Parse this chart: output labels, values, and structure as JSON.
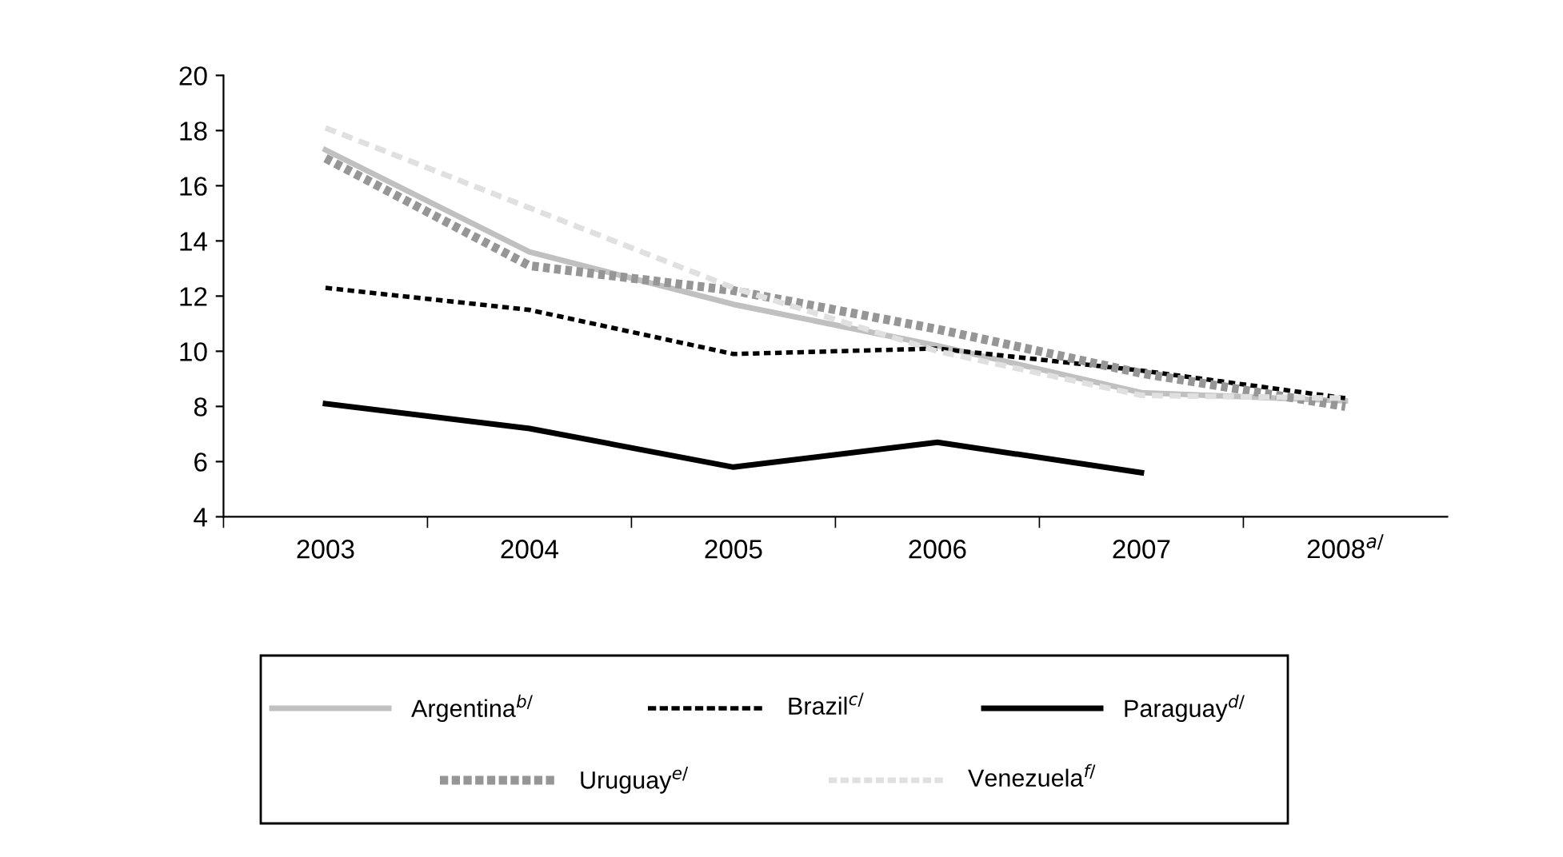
{
  "chart_data": {
    "type": "line",
    "categories": [
      "2003",
      "2004",
      "2005",
      "2006",
      "2007",
      "2008$^{a/}$"
    ],
    "series": [
      {
        "name": "Argentina$^{b/}$",
        "color": "#c0c0c0",
        "line_style": "solid",
        "values": [
          17.3,
          13.6,
          11.7,
          10.2,
          8.5,
          8.2
        ]
      },
      {
        "name": "Brazil$^{c/}$",
        "color": "#000000",
        "line_style": "dotted",
        "values": [
          12.3,
          11.5,
          9.9,
          10.1,
          9.3,
          8.3
        ]
      },
      {
        "name": "Paraguay$^{d/}$",
        "color": "#000000",
        "line_style": "solid",
        "values": [
          8.1,
          7.2,
          5.8,
          6.7,
          5.6,
          null
        ]
      },
      {
        "name": "Uruguay$^{e/}$",
        "color": "#969696",
        "line_style": "dotted",
        "values": [
          17.0,
          13.1,
          12.2,
          10.8,
          9.2,
          8.0
        ]
      },
      {
        "name": "Venezuela$^{f/}$",
        "color": "#e0e0e0",
        "line_style": "dashed",
        "values": [
          18.1,
          15.2,
          12.3,
          10.0,
          8.4,
          8.3
        ]
      }
    ],
    "ylim": [
      4,
      20
    ],
    "yticks": [
      4,
      6,
      8,
      10,
      12,
      14,
      16,
      18,
      20
    ],
    "grid": false,
    "legend": "bottom"
  }
}
